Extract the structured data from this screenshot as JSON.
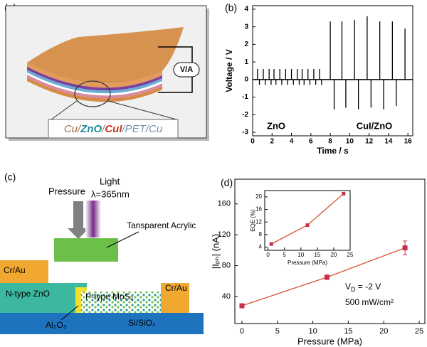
{
  "panels": {
    "a": "(a)",
    "b": "(b)",
    "c": "(c)",
    "d": "(d)"
  },
  "diagram_a": {
    "meter": "V/A",
    "layers": [
      {
        "text": "Cu/",
        "color": "#a0704a"
      },
      {
        "text": "ZnO",
        "color": "#1e8c9a"
      },
      {
        "text": "/",
        "color": "#a0704a"
      },
      {
        "text": "CuI",
        "color": "#c0392b"
      },
      {
        "text": "/PET/Cu",
        "color": "#7a8fa8"
      }
    ]
  },
  "diagram_c": {
    "pressure": "Pressure",
    "light": "Light",
    "wavelength": "λ=365nm",
    "acrylic": "Tansparent Acrylic",
    "electrode_left": "Cr/Au",
    "electrode_right": "Cr/Au",
    "zno": "N-type ZnO",
    "mos2": "P-type MoS₂",
    "al2o3": "Al₂O₃",
    "substrate": "Si/SiO₂"
  },
  "chart_data": [
    {
      "type": "spike",
      "xlabel": "Time / s",
      "ylabel": "Voltage / V",
      "color": "#000000",
      "x": [
        0.5,
        0.7,
        1.1,
        1.3,
        1.7,
        1.9,
        2.2,
        2.4,
        2.8,
        3.0,
        3.4,
        3.6,
        4.0,
        4.2,
        4.6,
        4.8,
        5.1,
        5.3,
        5.7,
        5.9,
        6.3,
        6.5,
        6.9,
        7.1,
        8.0,
        8.4,
        9.2,
        9.6,
        10.5,
        10.9,
        11.8,
        12.2,
        13.1,
        13.5,
        14.4,
        14.8,
        15.7
      ],
      "values": [
        0.6,
        -0.3,
        0.6,
        -0.3,
        0.6,
        -0.3,
        0.6,
        -0.3,
        0.6,
        -0.3,
        0.6,
        -0.3,
        0.6,
        -0.3,
        0.6,
        -0.3,
        0.6,
        -0.3,
        0.6,
        -0.3,
        0.6,
        -0.3,
        0.6,
        -0.3,
        3.3,
        -1.7,
        3.3,
        -1.6,
        3.4,
        -1.7,
        3.6,
        -1.6,
        3.3,
        -1.7,
        3.3,
        -1.5,
        2.9
      ],
      "xlim": [
        0,
        16.5
      ],
      "ylim": [
        -3.2,
        4.2
      ],
      "xticks": [
        0,
        2,
        4,
        6,
        8,
        10,
        12,
        14,
        16
      ],
      "yticks": [
        -3,
        -2,
        -1,
        0,
        1,
        2,
        3,
        4
      ],
      "annotations": [
        "ZnO",
        "CuI/ZnO"
      ]
    },
    {
      "type": "line",
      "xlabel": "Pressure (MPa)",
      "ylabel": "|Iₚₕ| (nA)",
      "color": "#d9542c",
      "marker_color": "#c8304a",
      "x": [
        0,
        12,
        23
      ],
      "values": [
        28,
        65,
        103
      ],
      "errors": [
        2,
        3,
        9
      ],
      "xlim": [
        -1,
        25.8
      ],
      "ylim": [
        5,
        192
      ],
      "xticks": [
        0,
        5,
        10,
        15,
        20,
        25
      ],
      "yticks": [
        40,
        80,
        120,
        160
      ],
      "annotations": [
        [
          "V",
          "D",
          " = -2 V"
        ],
        "500 mW/cm²"
      ]
    },
    {
      "type": "line",
      "xlabel": "Pressure (MPa)",
      "ylabel": "EQE (%)",
      "color": "#d9542c",
      "marker_color": "#c8304a",
      "x": [
        1,
        12,
        23
      ],
      "values": [
        5,
        11,
        21
      ],
      "xlim": [
        -1,
        25
      ],
      "ylim": [
        3,
        22
      ],
      "xticks": [
        0,
        5,
        10,
        15,
        20,
        25
      ],
      "yticks": [
        4,
        8,
        12,
        16,
        20
      ]
    }
  ]
}
